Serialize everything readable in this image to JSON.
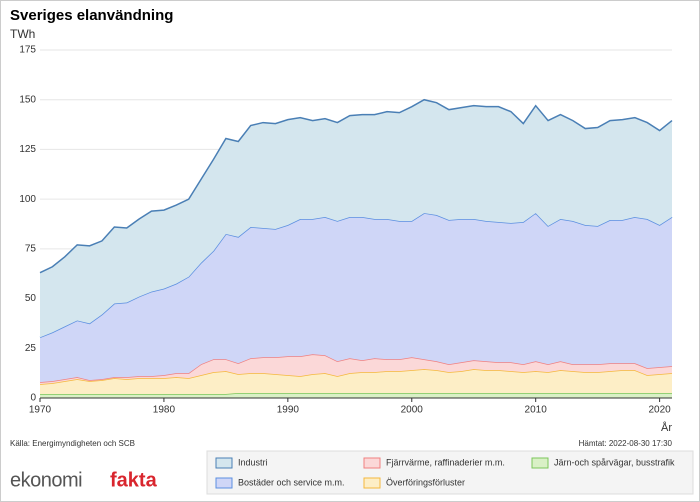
{
  "chart_data": {
    "type": "stacked-area",
    "title": "Sveriges elanvändning",
    "y_label": "TWh",
    "x_label": "År",
    "x": [
      1970,
      1971,
      1972,
      1973,
      1974,
      1975,
      1976,
      1977,
      1978,
      1979,
      1980,
      1981,
      1982,
      1983,
      1984,
      1985,
      1986,
      1987,
      1988,
      1989,
      1990,
      1991,
      1992,
      1993,
      1994,
      1995,
      1996,
      1997,
      1998,
      1999,
      2000,
      2001,
      2002,
      2003,
      2004,
      2005,
      2006,
      2007,
      2008,
      2009,
      2010,
      2011,
      2012,
      2013,
      2014,
      2015,
      2016,
      2017,
      2018,
      2019,
      2020,
      2021
    ],
    "xlim": [
      1970,
      2021
    ],
    "xticks": [
      1970,
      1980,
      1990,
      2000,
      2010,
      2020
    ],
    "ylim": [
      0,
      175
    ],
    "yticks": [
      0,
      25,
      50,
      75,
      100,
      125,
      150,
      175
    ],
    "grid": true,
    "series": [
      {
        "name": "Järn-och spårvägar, busstrafik",
        "color": "#7cc65a",
        "fill": "#d9f0c6",
        "values": [
          2,
          2,
          2,
          2,
          2,
          2,
          2,
          2,
          2,
          2,
          2,
          2,
          2,
          2,
          2,
          2,
          2.5,
          2.5,
          2.5,
          2.5,
          2.5,
          2.5,
          2.5,
          2.5,
          2.5,
          2.5,
          2.5,
          2.5,
          2.5,
          2.5,
          2.5,
          2.5,
          2.5,
          2.5,
          2.5,
          2.5,
          2.5,
          2.5,
          2.5,
          2.5,
          2.5,
          2.5,
          2.5,
          2.5,
          2.5,
          2.5,
          2.5,
          2.5,
          2.5,
          2.5,
          2.5,
          2.5
        ]
      },
      {
        "name": "Överföringsförluster",
        "color": "#f5b83d",
        "fill": "#fdeec6",
        "values": [
          5,
          5.5,
          6.5,
          7.5,
          6.5,
          7,
          8,
          7.5,
          8,
          8,
          8,
          8.5,
          8,
          9.5,
          11,
          11.5,
          9.5,
          10,
          10,
          9.5,
          9,
          8.5,
          9.5,
          10,
          8.5,
          10,
          10.5,
          10.5,
          11,
          11,
          11.5,
          12,
          11.5,
          10.5,
          11,
          12,
          11.5,
          11.5,
          11,
          10.5,
          11,
          10.5,
          11.5,
          11,
          10.5,
          10.5,
          11,
          11.5,
          11.5,
          9,
          9.5,
          10
        ]
      },
      {
        "name": "Fjärrvärme, raffinaderier m.m.",
        "color": "#f08080",
        "fill": "#fbd8d8",
        "values": [
          1,
          1,
          1,
          1,
          0.5,
          0.5,
          0.5,
          1,
          1,
          1,
          1.5,
          2,
          2.5,
          5.5,
          6.5,
          6,
          5.5,
          7.5,
          8,
          8.5,
          9.5,
          10,
          10,
          9,
          7.5,
          7.5,
          6,
          7,
          6,
          6,
          6.5,
          5,
          4.5,
          4,
          4.5,
          4.5,
          4.5,
          4,
          4.5,
          4,
          5,
          4,
          4.5,
          3.5,
          4,
          4,
          4,
          3.5,
          3.5,
          3.5,
          3.5,
          3.5
        ]
      },
      {
        "name": "Bostäder och service m.m.",
        "color": "#5b8fe0",
        "fill": "#cfd6f7",
        "values": [
          22.5,
          24.5,
          26.5,
          28.5,
          28.5,
          32.5,
          37,
          37.5,
          40,
          42.5,
          43.5,
          45,
          48.5,
          51,
          54.5,
          63,
          63.5,
          66,
          65,
          64.5,
          66,
          69,
          68,
          69.5,
          70.5,
          71,
          72,
          70,
          70.5,
          69.5,
          68.5,
          73.5,
          73.5,
          72.5,
          72,
          71,
          70.5,
          70.5,
          70,
          71.5,
          74.5,
          69.5,
          71.5,
          72,
          70,
          69.5,
          72,
          72,
          73.5,
          75,
          71.5,
          75
        ]
      },
      {
        "name": "Industri",
        "color": "#4a7fb5",
        "fill": "#d4e6ee",
        "values": [
          32.5,
          33,
          35,
          38,
          39,
          37,
          38.5,
          37.5,
          39,
          40.5,
          39.5,
          39.5,
          39,
          42,
          46,
          48,
          48,
          51,
          53,
          53,
          53,
          51,
          49.5,
          49.5,
          49.5,
          51,
          51.5,
          52.5,
          54,
          54.5,
          57.5,
          57,
          56.5,
          55.5,
          56,
          57,
          57.5,
          58,
          56,
          49.5,
          54,
          53,
          52.5,
          50.5,
          48.5,
          49.5,
          50,
          50.5,
          50,
          48.5,
          47.5,
          48.5
        ]
      }
    ]
  },
  "footer": {
    "source": "Källa: Energimyndigheten och SCB",
    "retrieved": "Hämtat: 2022-08-30 17:30",
    "brand_left": "ekonomi",
    "brand_right": "fakta"
  }
}
